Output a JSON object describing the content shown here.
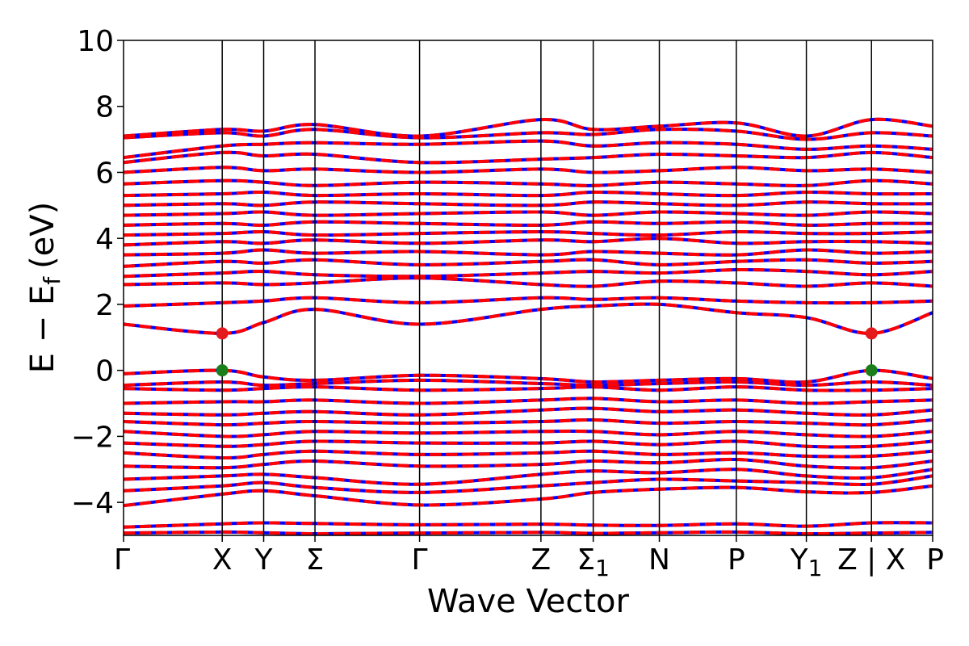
{
  "chart_data": {
    "type": "line",
    "title": "",
    "xlabel": "Wave Vector",
    "ylabel": "E − E",
    "ylabel_subscript": "f",
    "ylabel_unit": "(eV)",
    "ylim": [
      -5,
      10
    ],
    "xlim": [
      0,
      8.2
    ],
    "grid": false,
    "legend": "none",
    "y_ticks": [
      {
        "value": -4,
        "label": "−4"
      },
      {
        "value": -2,
        "label": "−2"
      },
      {
        "value": 0,
        "label": "0"
      },
      {
        "value": 2,
        "label": "2"
      },
      {
        "value": 4,
        "label": "4"
      },
      {
        "value": 6,
        "label": "6"
      },
      {
        "value": 8,
        "label": "8"
      },
      {
        "value": 10,
        "label": "10"
      }
    ],
    "high_symmetry_points": [
      {
        "x": 0.0,
        "label": "Γ",
        "subscript": ""
      },
      {
        "x": 1.0,
        "label": "X",
        "subscript": ""
      },
      {
        "x": 1.42,
        "label": "Y",
        "subscript": ""
      },
      {
        "x": 1.94,
        "label": "Σ",
        "subscript": ""
      },
      {
        "x": 3.0,
        "label": "Γ",
        "subscript": ""
      },
      {
        "x": 4.23,
        "label": "Z",
        "subscript": ""
      },
      {
        "x": 4.76,
        "label": "Σ",
        "subscript": "1"
      },
      {
        "x": 5.43,
        "label": "N",
        "subscript": ""
      },
      {
        "x": 6.21,
        "label": "P",
        "subscript": ""
      },
      {
        "x": 6.92,
        "label": "Y",
        "subscript": "1"
      },
      {
        "x": 7.58,
        "label": "Z | X",
        "subscript": ""
      },
      {
        "x": 8.2,
        "label": "P",
        "subscript": ""
      }
    ],
    "series_colors": {
      "spin_up": "#ff0000",
      "spin_down": "#0000ff"
    },
    "markers": [
      {
        "name": "CBM",
        "x": 1.0,
        "y": 1.12,
        "color": "#e41a1c"
      },
      {
        "name": "VBM",
        "x": 1.0,
        "y": 0.0,
        "color": "#1a7f1a"
      },
      {
        "name": "CBM",
        "x": 7.58,
        "y": 1.12,
        "color": "#e41a1c"
      },
      {
        "name": "VBM",
        "x": 7.58,
        "y": 0.0,
        "color": "#1a7f1a"
      }
    ],
    "bands": [
      [
        -4.93,
        -4.9,
        -4.92,
        -4.95,
        -4.93,
        -4.91,
        -4.94,
        -4.92,
        -4.9,
        -4.95,
        -4.93,
        -4.91
      ],
      [
        -4.75,
        -4.65,
        -4.62,
        -4.64,
        -4.68,
        -4.66,
        -4.69,
        -4.7,
        -4.65,
        -4.72,
        -4.62,
        -4.62
      ],
      [
        -4.1,
        -3.75,
        -3.65,
        -3.8,
        -4.08,
        -3.9,
        -3.7,
        -3.6,
        -3.55,
        -3.68,
        -3.7,
        -3.5
      ],
      [
        -3.65,
        -3.5,
        -3.4,
        -3.55,
        -3.7,
        -3.5,
        -3.4,
        -3.3,
        -3.35,
        -3.4,
        -3.45,
        -3.2
      ],
      [
        -3.3,
        -3.2,
        -3.15,
        -3.25,
        -3.45,
        -3.15,
        -3.05,
        -3.1,
        -3.0,
        -3.2,
        -3.25,
        -3.0
      ],
      [
        -2.9,
        -2.95,
        -2.85,
        -2.75,
        -2.9,
        -2.85,
        -2.75,
        -2.8,
        -2.7,
        -2.9,
        -2.95,
        -2.75
      ],
      [
        -2.5,
        -2.65,
        -2.55,
        -2.45,
        -2.55,
        -2.5,
        -2.45,
        -2.55,
        -2.5,
        -2.6,
        -2.6,
        -2.45
      ],
      [
        -2.2,
        -2.3,
        -2.25,
        -2.15,
        -2.2,
        -2.2,
        -2.15,
        -2.25,
        -2.15,
        -2.3,
        -2.3,
        -2.15
      ],
      [
        -1.85,
        -2.0,
        -1.95,
        -1.85,
        -1.9,
        -1.85,
        -1.85,
        -1.95,
        -1.85,
        -1.95,
        -2.0,
        -1.85
      ],
      [
        -1.55,
        -1.65,
        -1.6,
        -1.55,
        -1.6,
        -1.55,
        -1.5,
        -1.6,
        -1.55,
        -1.6,
        -1.65,
        -1.5
      ],
      [
        -1.3,
        -1.35,
        -1.3,
        -1.25,
        -1.35,
        -1.2,
        -1.15,
        -1.25,
        -1.2,
        -1.3,
        -1.35,
        -1.2
      ],
      [
        -1.0,
        -0.95,
        -0.95,
        -0.9,
        -1.0,
        -0.9,
        -0.85,
        -0.95,
        -0.9,
        -1.0,
        -0.95,
        -0.9
      ],
      [
        -0.55,
        -0.6,
        -0.55,
        -0.5,
        -0.6,
        -0.55,
        -0.5,
        -0.6,
        -0.5,
        -0.6,
        -0.6,
        -0.55
      ],
      [
        -0.45,
        -0.35,
        -0.45,
        -0.4,
        -0.3,
        -0.4,
        -0.45,
        -0.4,
        -0.35,
        -0.45,
        -0.35,
        -0.45
      ],
      [
        -0.1,
        0.0,
        -0.2,
        -0.3,
        -0.15,
        -0.25,
        -0.35,
        -0.3,
        -0.25,
        -0.35,
        0.0,
        -0.25
      ],
      [
        1.4,
        1.12,
        1.45,
        1.85,
        1.4,
        1.85,
        1.95,
        2.0,
        1.75,
        1.6,
        1.12,
        1.75
      ],
      [
        1.95,
        2.05,
        2.1,
        2.2,
        2.05,
        2.2,
        2.15,
        2.2,
        2.1,
        2.05,
        2.05,
        2.1
      ],
      [
        2.6,
        2.65,
        2.6,
        2.65,
        2.8,
        2.6,
        2.55,
        2.7,
        2.65,
        2.55,
        2.65,
        2.55
      ],
      [
        2.85,
        2.95,
        3.0,
        2.9,
        2.85,
        2.95,
        3.0,
        2.95,
        3.05,
        3.0,
        2.9,
        3.0
      ],
      [
        3.15,
        3.3,
        3.25,
        3.35,
        3.2,
        3.3,
        3.35,
        3.2,
        3.3,
        3.35,
        3.25,
        3.3
      ],
      [
        3.5,
        3.55,
        3.65,
        3.55,
        3.6,
        3.5,
        3.6,
        3.55,
        3.5,
        3.65,
        3.55,
        3.6
      ],
      [
        3.8,
        3.9,
        3.85,
        3.95,
        3.85,
        3.95,
        3.9,
        4.0,
        3.85,
        3.9,
        3.9,
        3.85
      ],
      [
        4.1,
        4.15,
        4.2,
        4.1,
        4.15,
        4.2,
        4.15,
        4.1,
        4.2,
        4.15,
        4.15,
        4.2
      ],
      [
        4.4,
        4.45,
        4.4,
        4.5,
        4.45,
        4.4,
        4.5,
        4.45,
        4.5,
        4.4,
        4.45,
        4.45
      ],
      [
        4.7,
        4.75,
        4.8,
        4.7,
        4.75,
        4.8,
        4.7,
        4.8,
        4.75,
        4.7,
        4.8,
        4.75
      ],
      [
        5.0,
        5.05,
        5.0,
        5.1,
        5.05,
        5.0,
        5.1,
        5.05,
        5.0,
        5.1,
        5.05,
        5.05
      ],
      [
        5.3,
        5.35,
        5.4,
        5.3,
        5.35,
        5.3,
        5.4,
        5.35,
        5.3,
        5.4,
        5.35,
        5.35
      ],
      [
        5.65,
        5.75,
        5.7,
        5.6,
        5.7,
        5.65,
        5.6,
        5.7,
        5.65,
        5.6,
        5.75,
        5.65
      ],
      [
        6.0,
        6.15,
        6.05,
        6.1,
        6.0,
        6.1,
        6.0,
        6.05,
        6.15,
        6.05,
        6.1,
        6.0
      ],
      [
        6.3,
        6.6,
        6.5,
        6.55,
        6.3,
        6.4,
        6.45,
        6.55,
        6.5,
        6.45,
        6.6,
        6.45
      ],
      [
        6.45,
        6.8,
        6.85,
        6.9,
        6.85,
        6.95,
        6.8,
        6.9,
        6.85,
        6.7,
        6.8,
        6.7
      ],
      [
        7.05,
        7.2,
        7.1,
        7.3,
        7.05,
        7.2,
        7.15,
        7.3,
        7.25,
        7.0,
        7.2,
        7.1
      ],
      [
        7.1,
        7.3,
        7.25,
        7.45,
        7.1,
        7.6,
        7.3,
        7.4,
        7.5,
        7.1,
        7.6,
        7.4
      ]
    ]
  }
}
